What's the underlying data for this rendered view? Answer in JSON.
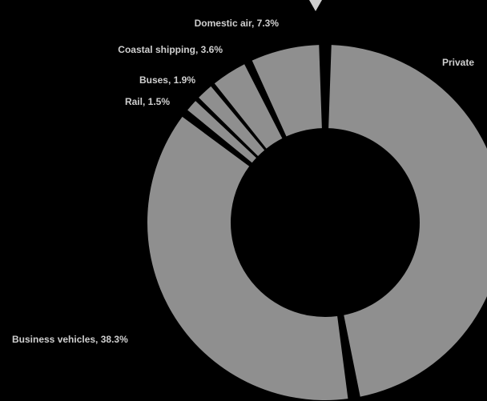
{
  "chart_data": {
    "type": "pie",
    "donut": true,
    "slice_color": "#8f8f8f",
    "background": "#000000",
    "label_color": "#cfcfcf",
    "slices": [
      {
        "label": "Private",
        "display": "Private",
        "value": 47.4
      },
      {
        "label": "Business vehicles",
        "display": "Business vehicles, 38.3%",
        "value": 38.3
      },
      {
        "label": "Rail",
        "display": "Rail, 1.5%",
        "value": 1.5
      },
      {
        "label": "Buses",
        "display": "Buses, 1.9%",
        "value": 1.9
      },
      {
        "label": "Coastal shipping",
        "display": "Coastal shipping, 3.6%",
        "value": 3.6
      },
      {
        "label": "Domestic air",
        "display": "Domestic air, 7.3%",
        "value": 7.3
      }
    ]
  }
}
